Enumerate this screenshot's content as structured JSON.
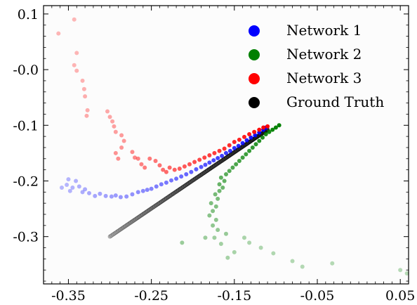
{
  "chart_data": {
    "type": "scatter",
    "xlim": [
      -0.38,
      0.06
    ],
    "ylim": [
      -0.385,
      0.115
    ],
    "xticks": [
      -0.35,
      -0.25,
      -0.15,
      -0.05,
      0.05
    ],
    "xtick_labels": [
      "-0.35",
      "-0.25",
      "-0.15",
      "-0.05",
      "0.05"
    ],
    "yticks": [
      0.1,
      0.0,
      -0.1,
      -0.2,
      -0.3
    ],
    "ytick_labels": [
      "0.1",
      "-0.0",
      "-0.1",
      "-0.2",
      "-0.3"
    ],
    "grid": false,
    "legend_position": "top-right",
    "series": [
      {
        "name": "Network 1",
        "color": "#0000ff",
        "points": [
          [
            -0.358,
            -0.212
          ],
          [
            -0.352,
            -0.207
          ],
          [
            -0.35,
            -0.197
          ],
          [
            -0.348,
            -0.218
          ],
          [
            -0.345,
            -0.212
          ],
          [
            -0.341,
            -0.2
          ],
          [
            -0.337,
            -0.21
          ],
          [
            -0.333,
            -0.22
          ],
          [
            -0.33,
            -0.215
          ],
          [
            -0.325,
            -0.222
          ],
          [
            -0.318,
            -0.227
          ],
          [
            -0.312,
            -0.223
          ],
          [
            -0.305,
            -0.227
          ],
          [
            -0.298,
            -0.228
          ],
          [
            -0.293,
            -0.226
          ],
          [
            -0.287,
            -0.229
          ],
          [
            -0.28,
            -0.228
          ],
          [
            -0.273,
            -0.224
          ],
          [
            -0.266,
            -0.22
          ],
          [
            -0.26,
            -0.218
          ],
          [
            -0.255,
            -0.216
          ],
          [
            -0.25,
            -0.214
          ],
          [
            -0.244,
            -0.21
          ],
          [
            -0.238,
            -0.206
          ],
          [
            -0.232,
            -0.203
          ],
          [
            -0.226,
            -0.199
          ],
          [
            -0.22,
            -0.196
          ],
          [
            -0.214,
            -0.192
          ],
          [
            -0.208,
            -0.188
          ],
          [
            -0.202,
            -0.184
          ],
          [
            -0.196,
            -0.179
          ],
          [
            -0.19,
            -0.175
          ],
          [
            -0.185,
            -0.171
          ],
          [
            -0.18,
            -0.167
          ],
          [
            -0.175,
            -0.163
          ],
          [
            -0.17,
            -0.159
          ],
          [
            -0.165,
            -0.155
          ],
          [
            -0.16,
            -0.15
          ],
          [
            -0.155,
            -0.146
          ],
          [
            -0.15,
            -0.141
          ],
          [
            -0.145,
            -0.137
          ],
          [
            -0.14,
            -0.132
          ],
          [
            -0.135,
            -0.127
          ],
          [
            -0.13,
            -0.122
          ],
          [
            -0.125,
            -0.118
          ],
          [
            -0.12,
            -0.113
          ],
          [
            -0.115,
            -0.108
          ],
          [
            -0.112,
            -0.104
          ]
        ]
      },
      {
        "name": "Network 2",
        "color": "#008000",
        "points": [
          [
            0.058,
            -0.366
          ],
          [
            0.05,
            -0.36
          ],
          [
            -0.032,
            -0.348
          ],
          [
            -0.068,
            -0.354
          ],
          [
            -0.08,
            -0.344
          ],
          [
            -0.103,
            -0.33
          ],
          [
            -0.118,
            -0.32
          ],
          [
            -0.132,
            -0.311
          ],
          [
            -0.138,
            -0.302
          ],
          [
            -0.15,
            -0.328
          ],
          [
            -0.158,
            -0.338
          ],
          [
            -0.166,
            -0.313
          ],
          [
            -0.174,
            -0.302
          ],
          [
            -0.185,
            -0.302
          ],
          [
            -0.213,
            -0.311
          ],
          [
            -0.16,
            -0.295
          ],
          [
            -0.17,
            -0.288
          ],
          [
            -0.176,
            -0.28
          ],
          [
            -0.172,
            -0.27
          ],
          [
            -0.18,
            -0.262
          ],
          [
            -0.176,
            -0.254
          ],
          [
            -0.172,
            -0.246
          ],
          [
            -0.178,
            -0.24
          ],
          [
            -0.17,
            -0.232
          ],
          [
            -0.173,
            -0.224
          ],
          [
            -0.168,
            -0.218
          ],
          [
            -0.164,
            -0.212
          ],
          [
            -0.168,
            -0.206
          ],
          [
            -0.162,
            -0.2
          ],
          [
            -0.166,
            -0.194
          ],
          [
            -0.16,
            -0.188
          ],
          [
            -0.156,
            -0.182
          ],
          [
            -0.152,
            -0.176
          ],
          [
            -0.148,
            -0.17
          ],
          [
            -0.144,
            -0.164
          ],
          [
            -0.14,
            -0.158
          ],
          [
            -0.136,
            -0.152
          ],
          [
            -0.132,
            -0.146
          ],
          [
            -0.128,
            -0.14
          ],
          [
            -0.124,
            -0.134
          ],
          [
            -0.12,
            -0.128
          ],
          [
            -0.116,
            -0.122
          ],
          [
            -0.112,
            -0.116
          ],
          [
            -0.108,
            -0.112
          ],
          [
            -0.104,
            -0.108
          ],
          [
            -0.1,
            -0.104
          ],
          [
            -0.096,
            -0.1
          ]
        ]
      },
      {
        "name": "Network 3",
        "color": "#ff0000",
        "points": [
          [
            -0.343,
            0.09
          ],
          [
            -0.362,
            0.065
          ],
          [
            -0.34,
            0.03
          ],
          [
            -0.343,
            0.008
          ],
          [
            -0.34,
            -0.002
          ],
          [
            -0.333,
            -0.02
          ],
          [
            -0.331,
            -0.035
          ],
          [
            -0.33,
            -0.048
          ],
          [
            -0.327,
            -0.073
          ],
          [
            -0.328,
            -0.083
          ],
          [
            -0.303,
            -0.075
          ],
          [
            -0.3,
            -0.085
          ],
          [
            -0.297,
            -0.093
          ],
          [
            -0.295,
            -0.102
          ],
          [
            -0.293,
            -0.112
          ],
          [
            -0.286,
            -0.118
          ],
          [
            -0.283,
            -0.128
          ],
          [
            -0.286,
            -0.14
          ],
          [
            -0.293,
            -0.15
          ],
          [
            -0.29,
            -0.16
          ],
          [
            -0.273,
            -0.148
          ],
          [
            -0.27,
            -0.158
          ],
          [
            -0.266,
            -0.16
          ],
          [
            -0.262,
            -0.17
          ],
          [
            -0.258,
            -0.176
          ],
          [
            -0.252,
            -0.16
          ],
          [
            -0.245,
            -0.164
          ],
          [
            -0.24,
            -0.172
          ],
          [
            -0.236,
            -0.18
          ],
          [
            -0.232,
            -0.184
          ],
          [
            -0.228,
            -0.176
          ],
          [
            -0.222,
            -0.18
          ],
          [
            -0.216,
            -0.178
          ],
          [
            -0.21,
            -0.174
          ],
          [
            -0.204,
            -0.17
          ],
          [
            -0.198,
            -0.166
          ],
          [
            -0.192,
            -0.162
          ],
          [
            -0.186,
            -0.158
          ],
          [
            -0.18,
            -0.154
          ],
          [
            -0.174,
            -0.15
          ],
          [
            -0.168,
            -0.146
          ],
          [
            -0.162,
            -0.142
          ],
          [
            -0.156,
            -0.136
          ],
          [
            -0.15,
            -0.13
          ],
          [
            -0.144,
            -0.126
          ],
          [
            -0.138,
            -0.121
          ],
          [
            -0.132,
            -0.116
          ],
          [
            -0.126,
            -0.112
          ],
          [
            -0.12,
            -0.108
          ],
          [
            -0.115,
            -0.104
          ],
          [
            -0.11,
            -0.102
          ]
        ]
      },
      {
        "name": "Ground Truth",
        "color": "#000000",
        "points": [
          [
            -0.3,
            -0.3
          ],
          [
            -0.11,
            -0.108
          ]
        ],
        "n_points": 160
      }
    ]
  }
}
